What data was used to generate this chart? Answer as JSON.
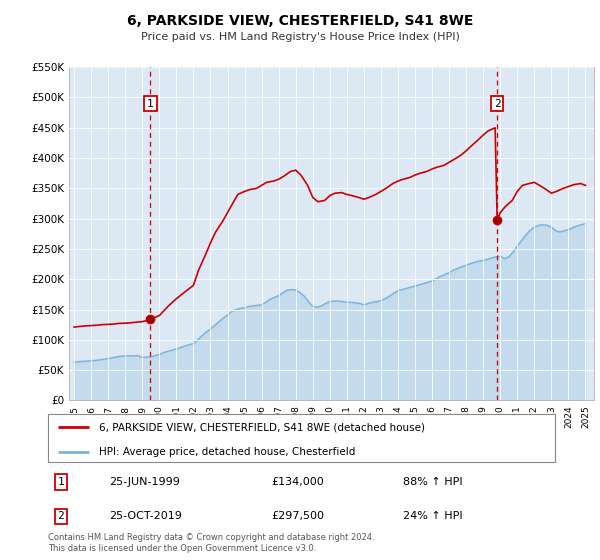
{
  "title": "6, PARKSIDE VIEW, CHESTERFIELD, S41 8WE",
  "subtitle": "Price paid vs. HM Land Registry's House Price Index (HPI)",
  "background_color": "#ffffff",
  "plot_bg_color": "#dce9f5",
  "hpi_color": "#7ab3d9",
  "price_color": "#cc0000",
  "marker_color": "#cc0000",
  "vline_color": "#cc0000",
  "ylim": [
    0,
    550000
  ],
  "yticks": [
    0,
    50000,
    100000,
    150000,
    200000,
    250000,
    300000,
    350000,
    400000,
    450000,
    500000,
    550000
  ],
  "ytick_labels": [
    "£0",
    "£50K",
    "£100K",
    "£150K",
    "£200K",
    "£250K",
    "£300K",
    "£350K",
    "£400K",
    "£450K",
    "£500K",
    "£550K"
  ],
  "xlim_start": 1994.7,
  "xlim_end": 2025.5,
  "legend_label_red": "6, PARKSIDE VIEW, CHESTERFIELD, S41 8WE (detached house)",
  "legend_label_blue": "HPI: Average price, detached house, Chesterfield",
  "annotation1_label": "1",
  "annotation1_date": "25-JUN-1999",
  "annotation1_price": "£134,000",
  "annotation1_hpi": "88% ↑ HPI",
  "annotation1_year": 1999.48,
  "annotation1_value": 134000,
  "annotation2_label": "2",
  "annotation2_date": "25-OCT-2019",
  "annotation2_price": "£297,500",
  "annotation2_hpi": "24% ↑ HPI",
  "annotation2_year": 2019.82,
  "annotation2_value": 297500,
  "footer_text": "Contains HM Land Registry data © Crown copyright and database right 2024.\nThis data is licensed under the Open Government Licence v3.0.",
  "hpi_x": [
    1995,
    1995.25,
    1995.5,
    1995.75,
    1996,
    1996.25,
    1996.5,
    1996.75,
    1997,
    1997.25,
    1997.5,
    1997.75,
    1998,
    1998.25,
    1998.5,
    1998.75,
    1999,
    1999.25,
    1999.5,
    1999.75,
    2000,
    2000.25,
    2000.5,
    2000.75,
    2001,
    2001.25,
    2001.5,
    2001.75,
    2002,
    2002.25,
    2002.5,
    2002.75,
    2003,
    2003.25,
    2003.5,
    2003.75,
    2004,
    2004.25,
    2004.5,
    2004.75,
    2005,
    2005.25,
    2005.5,
    2005.75,
    2006,
    2006.25,
    2006.5,
    2006.75,
    2007,
    2007.25,
    2007.5,
    2007.75,
    2008,
    2008.25,
    2008.5,
    2008.75,
    2009,
    2009.25,
    2009.5,
    2009.75,
    2010,
    2010.25,
    2010.5,
    2010.75,
    2011,
    2011.25,
    2011.5,
    2011.75,
    2012,
    2012.25,
    2012.5,
    2012.75,
    2013,
    2013.25,
    2013.5,
    2013.75,
    2014,
    2014.25,
    2014.5,
    2014.75,
    2015,
    2015.25,
    2015.5,
    2015.75,
    2016,
    2016.25,
    2016.5,
    2016.75,
    2017,
    2017.25,
    2017.5,
    2017.75,
    2018,
    2018.25,
    2018.5,
    2018.75,
    2019,
    2019.25,
    2019.5,
    2019.75,
    2020,
    2020.25,
    2020.5,
    2020.75,
    2021,
    2021.25,
    2021.5,
    2021.75,
    2022,
    2022.25,
    2022.5,
    2022.75,
    2023,
    2023.25,
    2023.5,
    2023.75,
    2024,
    2024.25,
    2024.5,
    2024.75,
    2025
  ],
  "hpi_y": [
    63000,
    64000,
    64500,
    65000,
    65500,
    66000,
    67000,
    68000,
    69000,
    70500,
    72000,
    73000,
    73500,
    73500,
    73500,
    74000,
    71000,
    71500,
    72000,
    74000,
    76000,
    79000,
    81000,
    83000,
    85000,
    87500,
    90000,
    92000,
    94000,
    100000,
    107000,
    113000,
    118000,
    124000,
    130000,
    136000,
    141000,
    147000,
    150000,
    152000,
    153000,
    155000,
    156000,
    157000,
    158000,
    162000,
    167000,
    170000,
    173000,
    178000,
    182000,
    183000,
    182000,
    178000,
    172000,
    163000,
    155000,
    154000,
    156000,
    160000,
    163000,
    164000,
    164000,
    163000,
    162000,
    162000,
    161000,
    160000,
    158000,
    160000,
    162000,
    163000,
    165000,
    168000,
    172000,
    177000,
    181000,
    183000,
    185000,
    187000,
    189000,
    191000,
    193000,
    195000,
    197000,
    201000,
    205000,
    208000,
    211000,
    215000,
    218000,
    221000,
    223000,
    226000,
    228000,
    230000,
    231000,
    233000,
    235000,
    237000,
    238000,
    234000,
    237000,
    245000,
    255000,
    264000,
    273000,
    281000,
    286000,
    289000,
    290000,
    289000,
    286000,
    280000,
    278000,
    280000,
    282000,
    285000,
    288000,
    290000,
    292000
  ],
  "price_x": [
    1995.0,
    1995.3,
    1995.5,
    1995.7,
    1996.0,
    1996.3,
    1996.6,
    1997.0,
    1997.3,
    1997.6,
    1998.0,
    1998.3,
    1998.6,
    1999.0,
    1999.3,
    1999.48,
    2000.0,
    2000.5,
    2001.0,
    2001.5,
    2002.0,
    2002.3,
    2002.7,
    2003.0,
    2003.3,
    2003.7,
    2004.0,
    2004.3,
    2004.6,
    2005.0,
    2005.3,
    2005.7,
    2006.0,
    2006.3,
    2006.7,
    2007.0,
    2007.3,
    2007.7,
    2008.0,
    2008.3,
    2008.7,
    2009.0,
    2009.3,
    2009.7,
    2010.0,
    2010.3,
    2010.7,
    2011.0,
    2011.3,
    2011.7,
    2012.0,
    2012.3,
    2012.7,
    2013.0,
    2013.3,
    2013.7,
    2014.0,
    2014.3,
    2014.7,
    2015.0,
    2015.3,
    2015.7,
    2016.0,
    2016.3,
    2016.7,
    2017.0,
    2017.3,
    2017.7,
    2018.0,
    2018.3,
    2018.7,
    2019.0,
    2019.3,
    2019.7,
    2019.82,
    2020.0,
    2020.3,
    2020.7,
    2021.0,
    2021.3,
    2021.7,
    2022.0,
    2022.3,
    2022.7,
    2023.0,
    2023.3,
    2023.7,
    2024.0,
    2024.3,
    2024.7,
    2025.0
  ],
  "price_y": [
    121000,
    122000,
    122500,
    123000,
    123500,
    124000,
    125000,
    125500,
    126000,
    127000,
    127500,
    128000,
    129000,
    130000,
    132000,
    134000,
    140000,
    155000,
    168000,
    179000,
    190000,
    215000,
    240000,
    260000,
    278000,
    295000,
    310000,
    325000,
    340000,
    345000,
    348000,
    350000,
    355000,
    360000,
    362000,
    365000,
    370000,
    378000,
    380000,
    372000,
    355000,
    335000,
    328000,
    330000,
    338000,
    342000,
    343000,
    340000,
    338000,
    335000,
    332000,
    335000,
    340000,
    345000,
    350000,
    358000,
    362000,
    365000,
    368000,
    372000,
    375000,
    378000,
    382000,
    385000,
    388000,
    393000,
    398000,
    405000,
    412000,
    420000,
    430000,
    438000,
    445000,
    450000,
    297500,
    310000,
    320000,
    330000,
    345000,
    355000,
    358000,
    360000,
    355000,
    348000,
    342000,
    345000,
    350000,
    353000,
    356000,
    358000,
    355000
  ]
}
